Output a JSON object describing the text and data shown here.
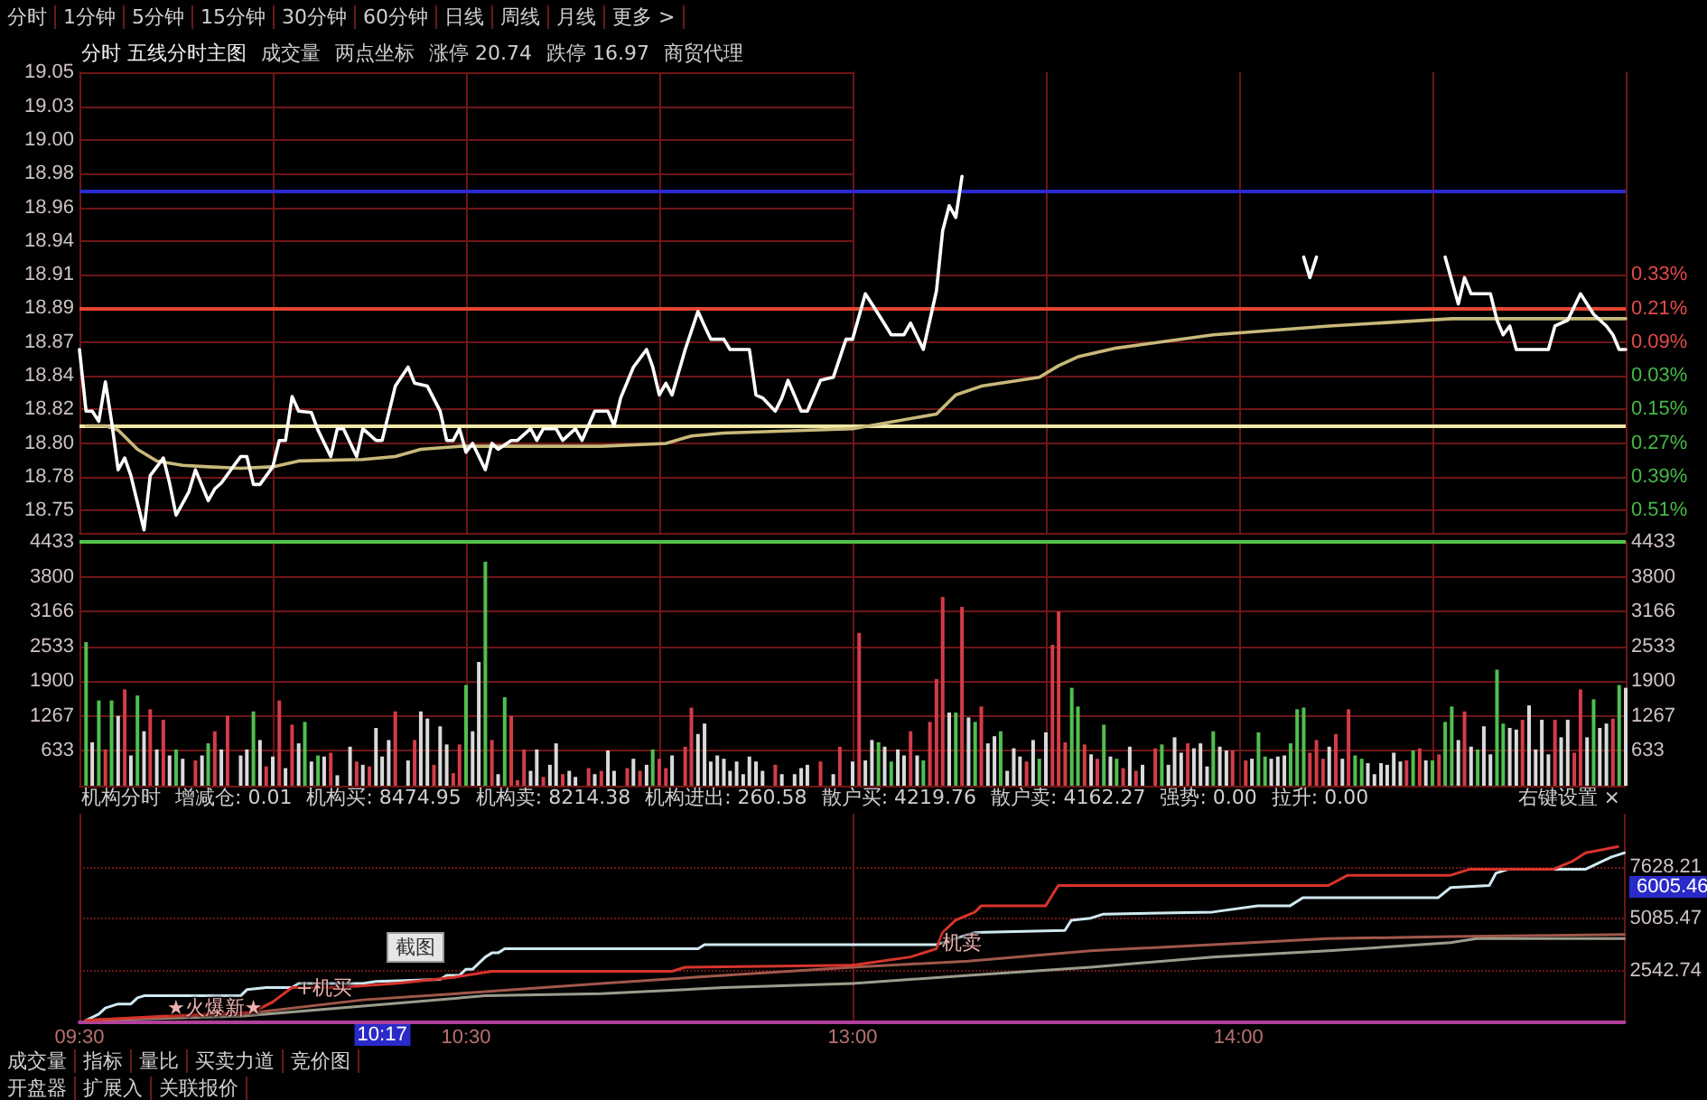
{
  "chart_data": [
    {
      "type": "other",
      "annotations": [
        "分时",
        "1分钟",
        "5分钟",
        "15分钟",
        "30分钟",
        "60分钟",
        "日线",
        "周线",
        "月线",
        "更多 >"
      ]
    },
    {
      "type": "line",
      "title": "分时 五线分时主图",
      "annotations": [
        "成交量",
        "两点坐标",
        "涨停 20.74",
        "跌停 16.97",
        "商贸代理"
      ],
      "series": [
        {
          "color": "#ffffff",
          "x": [
            9.5,
            9.517,
            9.533,
            9.55,
            9.567,
            9.583,
            9.6,
            9.617,
            9.633,
            9.667,
            9.683,
            9.717,
            9.733,
            9.75,
            9.783,
            9.8,
            9.833,
            9.85,
            9.867,
            9.9,
            9.917,
            9.933,
            9.95,
            9.967,
            10,
            10.017,
            10.033,
            10.05,
            10.067,
            10.1,
            10.117,
            10.15,
            10.167,
            10.183,
            10.217,
            10.233,
            10.267,
            10.283,
            10.317,
            10.35,
            10.367,
            10.4,
            10.433,
            10.45,
            10.467,
            10.483,
            10.5,
            10.517,
            10.55,
            10.567,
            10.583,
            10.617,
            10.633,
            10.667,
            10.683,
            10.7,
            10.733,
            10.75,
            10.783,
            10.8,
            10.833,
            10.867,
            10.883,
            10.9,
            10.933,
            10.967,
            10.983,
            11,
            11.017,
            11.033,
            11.067,
            11.1,
            11.117,
            11.133,
            11.167,
            11.183,
            11.233,
            11.25,
            11.267,
            11.3,
            11.317,
            11.333,
            11.367,
            11.383,
            11.417,
            11.45,
            11.483,
            11.5
          ],
          "values": [
            18.862,
            18.82,
            18.82,
            18.813,
            18.84,
            18.813,
            18.78,
            18.788,
            18.776,
            18.739,
            18.776,
            18.788,
            18.771,
            18.749,
            18.765,
            18.78,
            18.759,
            18.767,
            18.771,
            18.783,
            18.789,
            18.789,
            18.77,
            18.77,
            18.782,
            18.8,
            18.8,
            18.83,
            18.82,
            18.819,
            18.807,
            18.789,
            18.808,
            18.808,
            18.789,
            18.808,
            18.8,
            18.8,
            18.837,
            18.85,
            18.839,
            18.837,
            18.82,
            18.8,
            18.8,
            18.808,
            18.792,
            18.798,
            18.78,
            18.798,
            18.794,
            18.8,
            18.8,
            18.808,
            18.8,
            18.808,
            18.808,
            18.8,
            18.808,
            18.8,
            18.82,
            18.82,
            18.81,
            18.829,
            18.85,
            18.862,
            18.85,
            18.831,
            18.839,
            18.831,
            18.862,
            18.888,
            18.878,
            18.869,
            18.869,
            18.862,
            18.862,
            18.831,
            18.829,
            18.82,
            18.829,
            18.841,
            18.82,
            18.82,
            18.841,
            18.843,
            18.869,
            18.869
          ]
        },
        {
          "color": "#c9b97a",
          "x": [
            9.517,
            9.567,
            9.6,
            9.65,
            9.7,
            9.767,
            9.833,
            9.917,
            10,
            10.067,
            10.233,
            10.317,
            10.383,
            10.483,
            10.7,
            10.85,
            11.017,
            11.083,
            11.167,
            11.5
          ],
          "values": [
            18.81,
            18.81,
            18.807,
            18.794,
            18.786,
            18.783,
            18.782,
            18.781,
            18.782,
            18.786,
            18.787,
            18.789,
            18.794,
            18.796,
            18.796,
            18.796,
            18.798,
            18.803,
            18.805,
            18.808
          ]
        }
      ],
      "xlim": [
        9.5,
        11.5
      ],
      "xticks": [
        {
          "value": 9.5,
          "label": null
        },
        {
          "value": 10,
          "label": null
        },
        {
          "value": 10.5,
          "label": null
        },
        {
          "value": 11,
          "label": null
        }
      ],
      "ylim": [
        18.737,
        19.051
      ],
      "yticks": [
        {
          "value": 18.7523,
          "label": "18.75"
        },
        {
          "value": 18.7753,
          "label": "18.78"
        },
        {
          "value": 18.7982,
          "label": "18.80"
        },
        {
          "value": 18.8212,
          "label": "18.82"
        },
        {
          "value": 18.8441,
          "label": "18.84"
        },
        {
          "value": 18.8671,
          "label": "18.87"
        },
        {
          "value": 18.89,
          "label": "18.89"
        },
        {
          "value": 18.913,
          "label": "18.91"
        },
        {
          "value": 18.9359,
          "label": "18.94"
        },
        {
          "value": 18.9589,
          "label": "18.96"
        },
        {
          "value": 18.9818,
          "label": "18.98"
        },
        {
          "value": 19.0048,
          "label": "19.00"
        },
        {
          "value": 19.0277,
          "label": "19.03"
        },
        {
          "value": 19.0507,
          "label": "19.05"
        }
      ],
      "ref_lines": [
        {
          "axis": "y",
          "value": 18.97,
          "color": "#2a2ad2"
        },
        {
          "axis": "y",
          "value": 18.89,
          "color": "#e6452e"
        },
        {
          "axis": "y",
          "value": 18.81,
          "color": "#efe7a6"
        }
      ],
      "grid": true,
      "tick_labels": "y",
      "marker": "none"
    },
    {
      "type": "line",
      "series": [
        {
          "color": "#ffffff",
          "x": [
            13,
            13.033,
            13.067,
            13.1,
            13.117,
            13.133,
            13.15,
            13.183,
            13.217,
            13.233,
            13.25,
            13.267,
            13.283,
            13.3,
            14.167,
            14.183,
            14.2,
            14.217,
            14.533,
            14.567,
            14.583,
            14.6,
            14.65,
            14.667,
            14.683,
            14.7,
            14.717,
            14.8,
            14.817,
            14.85,
            14.883,
            14.917,
            14.95,
            14.967,
            14.983,
            15
          ],
          "values": [
            18.869,
            18.9,
            18.886,
            18.872,
            18.872,
            18.872,
            18.88,
            18.862,
            18.902,
            18.943,
            18.96,
            18.952,
            18.98,
            null,
            18.925,
            18.911,
            18.925,
            null,
            18.925,
            18.893,
            18.911,
            18.9,
            18.9,
            18.882,
            18.872,
            18.878,
            18.862,
            18.862,
            18.878,
            18.882,
            18.9,
            18.886,
            18.878,
            18.872,
            18.862,
            18.862
          ]
        },
        {
          "color": "#c9b97a",
          "x": [
            13,
            13.217,
            13.267,
            13.333,
            13.483,
            13.533,
            13.583,
            13.683,
            13.933,
            14.233,
            14.55,
            15
          ],
          "values": [
            18.808,
            18.818,
            18.831,
            18.837,
            18.843,
            18.851,
            18.857,
            18.863,
            18.872,
            18.878,
            18.883,
            18.883
          ]
        }
      ],
      "xlim": [
        13,
        15
      ],
      "xticks": [
        {
          "value": 13,
          "label": null
        },
        {
          "value": 13.5,
          "label": null
        },
        {
          "value": 14,
          "label": null
        },
        {
          "value": 14.5,
          "label": null
        },
        {
          "value": 15,
          "label": null
        }
      ],
      "ylim": [
        18.737,
        19.051
      ],
      "y2lim": [
        -0.59,
        1.052
      ],
      "y2ticks": [
        {
          "value": 0.33,
          "label": "0.33%"
        },
        {
          "value": 0.21,
          "label": "0.21%"
        },
        {
          "value": 0.09,
          "label": "0.09%"
        },
        {
          "value": -0.03,
          "label": "0.03%"
        },
        {
          "value": -0.15,
          "label": "0.15%"
        },
        {
          "value": -0.27,
          "label": "0.27%"
        },
        {
          "value": -0.39,
          "label": "0.39%"
        },
        {
          "value": -0.51,
          "label": "0.51%"
        }
      ],
      "ref_lines": [
        {
          "axis": "y",
          "value": 18.97,
          "color": "#2a2ad2"
        },
        {
          "axis": "y",
          "value": 18.89,
          "color": "#e6452e"
        },
        {
          "axis": "y",
          "value": 18.81,
          "color": "#efe7a6"
        }
      ],
      "grid": true,
      "tick_labels": "y",
      "marker": "none"
    },
    {
      "type": "bar",
      "x": [
        9.517,
        9.533,
        9.55,
        9.567,
        9.583,
        9.6,
        9.617,
        9.633,
        9.65,
        9.667,
        9.683,
        9.7,
        9.717,
        9.733,
        9.75,
        9.767,
        9.8,
        9.817,
        9.833,
        9.85,
        9.867,
        9.883,
        9.917,
        9.933,
        9.95,
        9.967,
        9.983,
        10,
        10.017,
        10.033,
        10.05,
        10.067,
        10.083,
        10.1,
        10.117,
        10.133,
        10.15,
        10.167,
        10.2,
        10.217,
        10.233,
        10.25,
        10.267,
        10.283,
        10.3,
        10.317,
        10.35,
        10.367,
        10.383,
        10.4,
        10.417,
        10.433,
        10.45,
        10.467,
        10.483,
        10.5,
        10.517,
        10.533,
        10.55,
        10.567,
        10.583,
        10.6,
        10.617,
        10.633,
        10.65,
        10.667,
        10.683,
        10.7,
        10.717,
        10.733,
        10.75,
        10.767,
        10.783,
        10.817,
        10.833,
        10.85,
        10.867,
        10.883,
        10.917,
        10.933,
        10.95,
        10.967,
        10.983,
        11,
        11.017,
        11.033,
        11.067,
        11.083,
        11.1,
        11.117,
        11.133,
        11.15,
        11.167,
        11.183,
        11.2,
        11.217,
        11.233,
        11.25,
        11.267,
        11.3,
        11.317,
        11.35,
        11.367,
        11.383,
        11.417,
        11.45,
        11.467
      ],
      "values": [
        2610,
        790,
        1550,
        660,
        1550,
        1270,
        1750,
        550,
        1640,
        990,
        1390,
        660,
        1200,
        550,
        660,
        490,
        460,
        550,
        770,
        990,
        660,
        1270,
        550,
        660,
        1350,
        830,
        350,
        530,
        1550,
        320,
        1110,
        770,
        1160,
        440,
        550,
        530,
        600,
        190,
        710,
        440,
        380,
        350,
        1050,
        530,
        830,
        1350,
        460,
        830,
        1350,
        1220,
        380,
        1080,
        750,
        230,
        750,
        1830,
        990,
        2250,
        4070,
        830,
        210,
        1610,
        1270,
        100,
        660,
        270,
        660,
        160,
        380,
        770,
        210,
        270,
        160,
        320,
        210,
        270,
        640,
        270,
        320,
        490,
        270,
        380,
        660,
        490,
        320,
        550,
        710,
        1420,
        940,
        1130,
        440,
        550,
        490,
        270,
        440,
        210,
        530,
        440,
        270,
        380,
        210,
        210,
        320,
        380,
        440,
        210,
        710
      ],
      "colors": [
        "#4fbf4f",
        "#dadada",
        "#4fbf4f",
        "#d43c46",
        "#4fbf4f",
        "#dadada",
        "#d43c46",
        "#dadada",
        "#4fbf4f",
        "#dadada",
        "#d43c46",
        "#dadada",
        "#d43c46",
        "#dadada",
        "#4fbf4f",
        "#dadada",
        "#d43c46",
        "#dadada",
        "#4fbf4f",
        "#d43c46",
        "#dadada",
        "#d43c46",
        "#dadada",
        "#dadada",
        "#4fbf4f",
        "#dadada",
        "#d43c46",
        "#dadada",
        "#d43c46",
        "#dadada",
        "#d43c46",
        "#dadada",
        "#4fbf4f",
        "#dadada",
        "#4fbf4f",
        "#dadada",
        "#d43c46",
        "#dadada",
        "#dadada",
        "#d43c46",
        "#dadada",
        "#d43c46",
        "#dadada",
        "#dadada",
        "#dadada",
        "#d43c46",
        "#dadada",
        "#d43c46",
        "#dadada",
        "#dadada",
        "#d43c46",
        "#dadada",
        "#dadada",
        "#d43c46",
        "#d43c46",
        "#4fbf4f",
        "#dadada",
        "#dadada",
        "#4fbf4f",
        "#d43c46",
        "#dadada",
        "#4fbf4f",
        "#d43c46",
        "#d43c46",
        "#d43c46",
        "#dadada",
        "#dadada",
        "#d43c46",
        "#dadada",
        "#dadada",
        "#d43c46",
        "#dadada",
        "#dadada",
        "#d43c46",
        "#dadada",
        "#d43c46",
        "#dadada",
        "#dadada",
        "#d43c46",
        "#dadada",
        "#d43c46",
        "#dadada",
        "#4fbf4f",
        "#d43c46",
        "#d43c46",
        "#dadada",
        "#d43c46",
        "#d43c46",
        "#dadada",
        "#dadada",
        "#dadada",
        "#dadada",
        "#dadada",
        "#dadada",
        "#dadada",
        "#dadada",
        "#dadada",
        "#dadada",
        "#dadada",
        "#d43c46",
        "#dadada",
        "#dadada",
        "#dadada",
        "#dadada",
        "#d43c46",
        "#dadada",
        "#d43c46"
      ],
      "xlim": [
        9.5,
        11.5
      ],
      "xticks": [
        {
          "value": 9.5,
          "label": null
        },
        {
          "value": 10,
          "label": null
        },
        {
          "value": 10.5,
          "label": null
        },
        {
          "value": 11,
          "label": null
        }
      ],
      "ylim": [
        0,
        4433
      ],
      "yticks": [
        633,
        1267,
        1900,
        2533,
        3166,
        3800,
        4433
      ],
      "ref_lines": [
        {
          "axis": "y",
          "value": 4433,
          "color": "#55c24a"
        }
      ],
      "grid": true,
      "tick_labels": "y"
    },
    {
      "type": "bar",
      "x": [
        13,
        13.017,
        13.033,
        13.05,
        13.067,
        13.083,
        13.1,
        13.117,
        13.133,
        13.15,
        13.167,
        13.183,
        13.2,
        13.217,
        13.233,
        13.25,
        13.267,
        13.283,
        13.3,
        13.317,
        13.333,
        13.35,
        13.367,
        13.383,
        13.4,
        13.417,
        13.433,
        13.45,
        13.467,
        13.483,
        13.5,
        13.517,
        13.533,
        13.55,
        13.567,
        13.583,
        13.6,
        13.617,
        13.633,
        13.65,
        13.667,
        13.683,
        13.7,
        13.717,
        13.733,
        13.75,
        13.783,
        13.8,
        13.817,
        13.833,
        13.85,
        13.867,
        13.883,
        13.9,
        13.917,
        13.933,
        13.95,
        13.967,
        13.983,
        14.017,
        14.033,
        14.05,
        14.067,
        14.083,
        14.1,
        14.117,
        14.133,
        14.15,
        14.167,
        14.183,
        14.2,
        14.217,
        14.233,
        14.25,
        14.267,
        14.283,
        14.3,
        14.317,
        14.333,
        14.35,
        14.367,
        14.383,
        14.4,
        14.417,
        14.433,
        14.45,
        14.467,
        14.483,
        14.5,
        14.517,
        14.533,
        14.55,
        14.567,
        14.583,
        14.6,
        14.617,
        14.633,
        14.65,
        14.667,
        14.683,
        14.7,
        14.717,
        14.733,
        14.75,
        14.767,
        14.783,
        14.8,
        14.817,
        14.833,
        14.85,
        14.867,
        14.883,
        14.9,
        14.917,
        14.933,
        14.95,
        14.967,
        14.983,
        15
      ],
      "values": [
        440,
        2780,
        460,
        830,
        790,
        710,
        440,
        660,
        550,
        990,
        550,
        460,
        1160,
        1940,
        3430,
        1330,
        1330,
        3250,
        1240,
        1160,
        1440,
        770,
        900,
        990,
        270,
        680,
        530,
        440,
        830,
        490,
        970,
        2560,
        3170,
        790,
        1780,
        1440,
        750,
        570,
        490,
        1110,
        530,
        490,
        320,
        710,
        270,
        380,
        680,
        750,
        380,
        880,
        600,
        770,
        680,
        770,
        350,
        990,
        710,
        640,
        640,
        460,
        490,
        970,
        530,
        490,
        530,
        550,
        770,
        1390,
        1420,
        600,
        830,
        490,
        710,
        940,
        490,
        1390,
        550,
        490,
        410,
        210,
        410,
        380,
        600,
        440,
        460,
        640,
        680,
        460,
        460,
        570,
        1160,
        1440,
        830,
        1350,
        710,
        660,
        1080,
        570,
        2110,
        1130,
        1050,
        1020,
        1200,
        1460,
        660,
        1200,
        570,
        1200,
        880,
        1200,
        600,
        1750,
        880,
        1570,
        1050,
        1130,
        1220,
        1830,
        1780
      ],
      "colors": [
        "#dadada",
        "#d43c46",
        "#dadada",
        "#dadada",
        "#4fbf4f",
        "#dadada",
        "#4fbf4f",
        "#dadada",
        "#dadada",
        "#d43c46",
        "#dadada",
        "#4fbf4f",
        "#d43c46",
        "#d43c46",
        "#d43c46",
        "#dadada",
        "#4fbf4f",
        "#d43c46",
        "#dadada",
        "#4fbf4f",
        "#d43c46",
        "#dadada",
        "#dadada",
        "#4fbf4f",
        "#dadada",
        "#dadada",
        "#dadada",
        "#d43c46",
        "#dadada",
        "#4fbf4f",
        "#dadada",
        "#d43c46",
        "#d43c46",
        "#d43c46",
        "#4fbf4f",
        "#4fbf4f",
        "#d43c46",
        "#dadada",
        "#d43c46",
        "#4fbf4f",
        "#dadada",
        "#4fbf4f",
        "#d43c46",
        "#dadada",
        "#d43c46",
        "#dadada",
        "#d43c46",
        "#4fbf4f",
        "#dadada",
        "#dadada",
        "#dadada",
        "#d43c46",
        "#dadada",
        "#dadada",
        "#dadada",
        "#4fbf4f",
        "#dadada",
        "#dadada",
        "#d43c46",
        "#d43c46",
        "#dadada",
        "#4fbf4f",
        "#4fbf4f",
        "#dadada",
        "#dadada",
        "#dadada",
        "#4fbf4f",
        "#4fbf4f",
        "#4fbf4f",
        "#d43c46",
        "#d43c46",
        "#d43c46",
        "#dadada",
        "#d43c46",
        "#dadada",
        "#d43c46",
        "#4fbf4f",
        "#4fbf4f",
        "#dadada",
        "#dadada",
        "#dadada",
        "#dadada",
        "#dadada",
        "#dadada",
        "#d43c46",
        "#4fbf4f",
        "#d43c46",
        "#dadada",
        "#4fbf4f",
        "#d43c46",
        "#4fbf4f",
        "#4fbf4f",
        "#dadada",
        "#d43c46",
        "#dadada",
        "#4fbf4f",
        "#dadada",
        "#dadada",
        "#4fbf4f",
        "#4fbf4f",
        "#dadada",
        "#dadada",
        "#d43c46",
        "#dadada",
        "#dadada",
        "#dadada",
        "#dadada",
        "#d43c46",
        "#dadada",
        "#dadada",
        "#d43c46",
        "#d43c46",
        "#dadada",
        "#4fbf4f",
        "#dadada",
        "#dadada",
        "#d43c46",
        "#4fbf4f",
        "#dadada"
      ],
      "xlim": [
        13,
        15
      ],
      "xticks": [
        {
          "value": 13,
          "label": null
        },
        {
          "value": 13.5,
          "label": null
        },
        {
          "value": 14,
          "label": null
        },
        {
          "value": 14.5,
          "label": null
        },
        {
          "value": 15,
          "label": null
        }
      ],
      "ylim": [
        0,
        4433
      ],
      "yticks": [
        633,
        1267,
        1900,
        2533,
        3166,
        3800,
        4433
      ],
      "ref_lines": [
        {
          "axis": "y",
          "value": 4433,
          "color": "#55c24a"
        }
      ],
      "grid": true,
      "tick_labels": "y"
    },
    {
      "type": "line",
      "annotations": [
        "机构分时",
        "增减仓: 0.01",
        "机构买: 8474.95",
        "机构卖: 8214.38",
        "机构进出: 260.58",
        "散户买: 4219.76",
        "散户卖: 4162.27",
        "强势: 0.00",
        "拉升: 0.00",
        {
          "text": "★火爆新★",
          "x": 9.85,
          "y": 700
        },
        {
          "text": "+机买",
          "x": 10.133,
          "y": 1700
        },
        {
          "text": "10:17",
          "x": 10.283
        }
      ],
      "series": [
        {
          "color": "#d8342c",
          "x": [
            9.517,
            9.717,
            9.95,
            10,
            10.05,
            10.167,
            10.317,
            10.467,
            10.567,
            11.033,
            11.067,
            11.5
          ],
          "values": [
            100,
            300,
            500,
            1000,
            1700,
            1700,
            1900,
            2200,
            2500,
            2500,
            2700,
            2800
          ]
        },
        {
          "color": "#cfe9f2",
          "x": [
            9.517,
            9.55,
            9.567,
            9.6,
            9.633,
            9.65,
            9.667,
            9.917,
            9.933,
            9.983,
            10.05,
            10.067,
            10.233,
            10.267,
            10.433,
            10.45,
            10.483,
            10.5,
            10.517,
            10.55,
            10.567,
            10.583,
            10.6,
            11.1,
            11.117,
            11.5
          ],
          "values": [
            100,
            400,
            700,
            900,
            900,
            1200,
            1300,
            1300,
            1600,
            1700,
            1700,
            1900,
            1900,
            2000,
            2100,
            2300,
            2300,
            2600,
            2600,
            3200,
            3400,
            3400,
            3600,
            3600,
            3800,
            3800
          ]
        },
        {
          "color": "#a0584a",
          "x": [
            9.517,
            9.917,
            10.233,
            10.55,
            10.85,
            11.167,
            11.5
          ],
          "values": [
            100,
            400,
            1100,
            1500,
            1900,
            2300,
            2700
          ]
        },
        {
          "color": "#9c9c8c",
          "x": [
            9.517,
            9.917,
            10.233,
            10.55,
            10.85,
            11.167,
            11.5
          ],
          "values": [
            100,
            300,
            800,
            1300,
            1400,
            1700,
            1900
          ]
        }
      ],
      "xlim": [
        9.5,
        11.5
      ],
      "xticks": [
        {
          "value": 9.5,
          "label": "09:30"
        },
        {
          "value": 10.5,
          "label": "10:30"
        }
      ],
      "ylim": [
        0,
        10170.95
      ],
      "yticks": [
        2542.74,
        5085.47,
        7628.21
      ],
      "grid": "y",
      "tick_labels": "x",
      "marker": "none"
    },
    {
      "type": "line",
      "annotations": [
        "右键设置 ×",
        {
          "text": "机卖",
          "x": 13.283,
          "y": 3900
        }
      ],
      "series": [
        {
          "color": "#d8342c",
          "x": [
            13,
            13.15,
            13.217,
            13.233,
            13.267,
            13.317,
            13.333,
            13.5,
            13.533,
            14.233,
            14.283,
            14.55,
            14.6,
            14.817,
            14.867,
            14.9,
            14.983
          ],
          "values": [
            2800,
            3200,
            3600,
            4400,
            5000,
            5400,
            5700,
            5700,
            6700,
            6700,
            7200,
            7200,
            7500,
            7500,
            7900,
            8300,
            8600
          ]
        },
        {
          "color": "#cfe9f2",
          "x": [
            13,
            13.217,
            13.233,
            13.267,
            13.3,
            13.317,
            13.55,
            13.567,
            13.617,
            13.65,
            13.933,
            14.05,
            14.133,
            14.167,
            14.517,
            14.55,
            14.65,
            14.667,
            14.7,
            14.9,
            14.933,
            14.967,
            15
          ],
          "values": [
            3800,
            3800,
            3900,
            4100,
            4300,
            4400,
            4500,
            5000,
            5100,
            5300,
            5400,
            5700,
            5700,
            6100,
            6100,
            6600,
            6700,
            7300,
            7500,
            7500,
            7800,
            8100,
            8300
          ]
        },
        {
          "color": "#a0584a",
          "x": [
            13,
            13.3,
            13.617,
            13.933,
            14.233,
            14.55,
            15
          ],
          "values": [
            2700,
            3000,
            3500,
            3800,
            4100,
            4200,
            4300
          ]
        },
        {
          "color": "#9c9c8c",
          "x": [
            13,
            13.3,
            13.617,
            13.933,
            14.233,
            14.55,
            14.617,
            15
          ],
          "values": [
            1900,
            2300,
            2700,
            3200,
            3500,
            3900,
            4100,
            4100
          ]
        }
      ],
      "xlim": [
        13,
        15
      ],
      "xticks": [
        {
          "value": 13,
          "label": "13:00"
        },
        {
          "value": 14,
          "label": "14:00"
        }
      ],
      "ylim": [
        0,
        10170.95
      ],
      "yticks": [
        2542.74,
        5085.47,
        7628.21
      ],
      "grid": "y",
      "marker": "none"
    },
    {
      "type": "other",
      "annotations": [
        "截图"
      ]
    },
    {
      "type": "other",
      "annotations": [
        "6005.46"
      ]
    },
    {
      "type": "other",
      "annotations": [
        "成交量",
        "指标",
        "量比",
        "买卖力道",
        "竞价图"
      ]
    },
    {
      "type": "other",
      "annotations": [
        "开盘器",
        "扩展入",
        "关联报价"
      ]
    }
  ]
}
